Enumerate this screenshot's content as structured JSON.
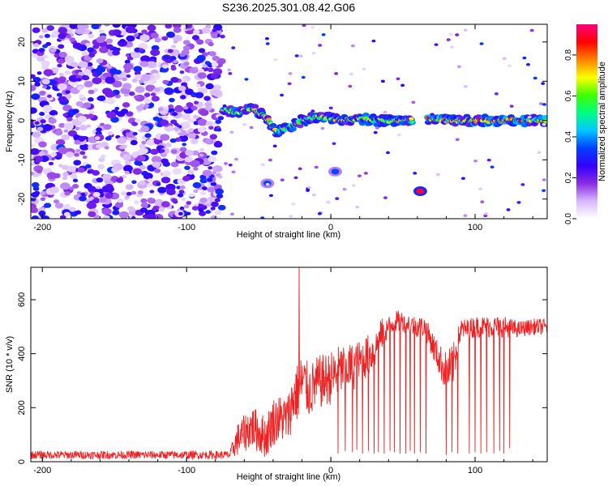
{
  "chart_data": [
    {
      "type": "heatmap",
      "title": "S236.2025.301.08.42.G06",
      "xlabel": "Height of straight line (km)",
      "ylabel": "Frequency (Hz)",
      "xlim": [
        -208,
        150
      ],
      "ylim": [
        -25,
        24.5
      ],
      "xticks": [
        -200,
        -100,
        0,
        100
      ],
      "xtick_labels": [
        "-200",
        "-100",
        "0",
        "100"
      ],
      "yticks": [
        -20,
        -10,
        0,
        10,
        20
      ],
      "ytick_labels": [
        "-20",
        "-10",
        "0",
        "10",
        "20"
      ],
      "colorbar": {
        "label": "Normalized spectral amplitude",
        "range": [
          0,
          0.95
        ],
        "ticks": [
          0,
          0.2,
          0.4,
          0.6,
          0.8
        ],
        "tick_labels": [
          "0.0",
          "0.2",
          "0.4",
          "0.6",
          "0.8"
        ],
        "colormap": [
          "#ffffff",
          "#d7b8ff",
          "#8a2be2",
          "#3300ff",
          "#0040ff",
          "#00c8ff",
          "#00ff80",
          "#40ff00",
          "#ffff00",
          "#ff8000",
          "#ff0000",
          "#ff007f"
        ]
      },
      "features": [
        {
          "name": "noise region",
          "x_range": [
            -208,
            -75
          ],
          "freq_range": [
            -25,
            24.5
          ],
          "amplitude": 0.15
        },
        {
          "name": "main line",
          "x": [
            -75,
            -65,
            -55,
            -45,
            -38,
            -30,
            -20,
            -10,
            0,
            10,
            20,
            30,
            40,
            50,
            57
          ],
          "freq": [
            3,
            2,
            3,
            1,
            -3,
            -2,
            0,
            1,
            0.5,
            0,
            0.5,
            0,
            0,
            0,
            0
          ],
          "amplitude": 0.7
        },
        {
          "name": "main line",
          "x": [
            67,
            80,
            90,
            100,
            110,
            120,
            130,
            140,
            150
          ],
          "freq": [
            0.5,
            0,
            0,
            0,
            0,
            0,
            0,
            0,
            0
          ],
          "amplitude": 0.8
        },
        {
          "name": "secondary blob",
          "x": 62,
          "freq": -18,
          "amplitude": 0.9
        },
        {
          "name": "secondary blob",
          "x": 3,
          "freq": -13,
          "amplitude": 0.35
        },
        {
          "name": "secondary blob",
          "x": -44,
          "freq": -16,
          "amplitude": 0.35
        }
      ]
    },
    {
      "type": "line",
      "xlabel": "Height of straight line (km)",
      "ylabel": "SNR (10 * v/v)",
      "xlim": [
        -208,
        150
      ],
      "ylim": [
        0,
        720
      ],
      "xticks": [
        -200,
        -100,
        0,
        100
      ],
      "xtick_labels": [
        "-200",
        "-100",
        "0",
        "100"
      ],
      "yticks": [
        0,
        200,
        400,
        600
      ],
      "ytick_labels": [
        "0",
        "200",
        "400",
        "600"
      ],
      "color": "#ee2222",
      "envelope": {
        "x": [
          -208,
          -70,
          -65,
          -55,
          -45,
          -40,
          -35,
          -30,
          -25,
          -22,
          -20,
          -15,
          -10,
          -5,
          0,
          5,
          10,
          15,
          20,
          25,
          30,
          35,
          40,
          45,
          50,
          55,
          60,
          65,
          70,
          75,
          80,
          85,
          90,
          95,
          100,
          110,
          120,
          130,
          140,
          150
        ],
        "level": [
          25,
          25,
          80,
          130,
          90,
          150,
          160,
          160,
          250,
          260,
          300,
          260,
          290,
          300,
          310,
          330,
          350,
          350,
          370,
          390,
          410,
          470,
          500,
          520,
          520,
          510,
          500,
          500,
          440,
          380,
          330,
          360,
          490,
          490,
          500,
          500,
          500,
          490,
          500,
          500
        ],
        "noise": [
          15,
          15,
          60,
          80,
          80,
          90,
          90,
          90,
          110,
          110,
          110,
          100,
          100,
          100,
          100,
          100,
          90,
          90,
          80,
          80,
          70,
          60,
          40,
          40,
          40,
          40,
          40,
          40,
          50,
          60,
          80,
          80,
          40,
          40,
          40,
          40,
          40,
          30,
          30,
          30
        ]
      },
      "spike": {
        "x": -22,
        "value": 720
      },
      "dropouts": [
        {
          "x": 5,
          "floor": 30
        },
        {
          "x": 10,
          "floor": 40
        },
        {
          "x": 15,
          "floor": 35
        },
        {
          "x": 18,
          "floor": 45
        },
        {
          "x": 22,
          "floor": 30
        },
        {
          "x": 26,
          "floor": 40
        },
        {
          "x": 30,
          "floor": 30
        },
        {
          "x": 33,
          "floor": 35
        },
        {
          "x": 37,
          "floor": 30
        },
        {
          "x": 41,
          "floor": 40
        },
        {
          "x": 44,
          "floor": 35
        },
        {
          "x": 48,
          "floor": 30
        },
        {
          "x": 52,
          "floor": 30
        },
        {
          "x": 55,
          "floor": 40
        },
        {
          "x": 58,
          "floor": 30
        },
        {
          "x": 62,
          "floor": 35
        },
        {
          "x": 66,
          "floor": 30
        },
        {
          "x": 80,
          "floor": 25
        },
        {
          "x": 84,
          "floor": 35
        },
        {
          "x": 88,
          "floor": 30
        },
        {
          "x": 96,
          "floor": 30
        },
        {
          "x": 100,
          "floor": 35
        },
        {
          "x": 104,
          "floor": 30
        },
        {
          "x": 108,
          "floor": 35
        },
        {
          "x": 113,
          "floor": 30
        },
        {
          "x": 117,
          "floor": 40
        },
        {
          "x": 120,
          "floor": 30
        },
        {
          "x": 124,
          "floor": 50
        }
      ]
    }
  ]
}
